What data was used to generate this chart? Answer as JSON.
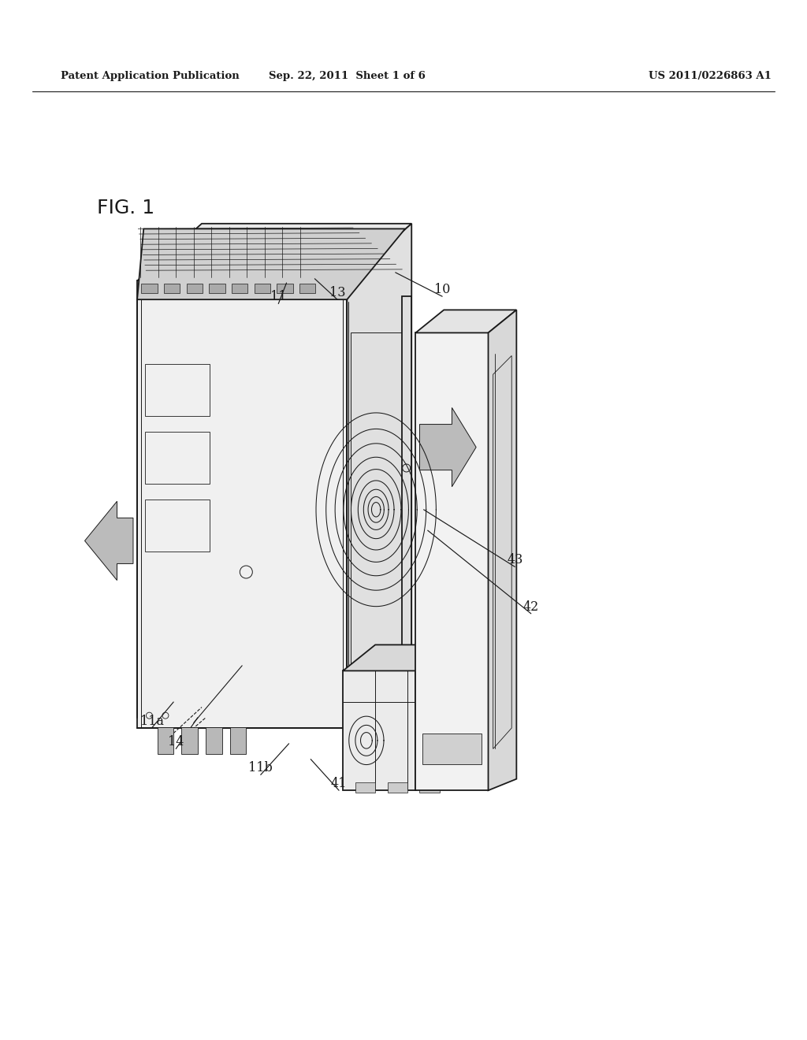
{
  "bg_color": "#ffffff",
  "line_color": "#1a1a1a",
  "header_left": "Patent Application Publication",
  "header_mid": "Sep. 22, 2011  Sheet 1 of 6",
  "header_right": "US 2011/0226863 A1",
  "fig_label": "FIG. 1",
  "lw_main": 1.3,
  "lw_thin": 0.7,
  "label_fontsize": 11.5,
  "header_fontsize": 9.5,
  "figlabel_fontsize": 18
}
